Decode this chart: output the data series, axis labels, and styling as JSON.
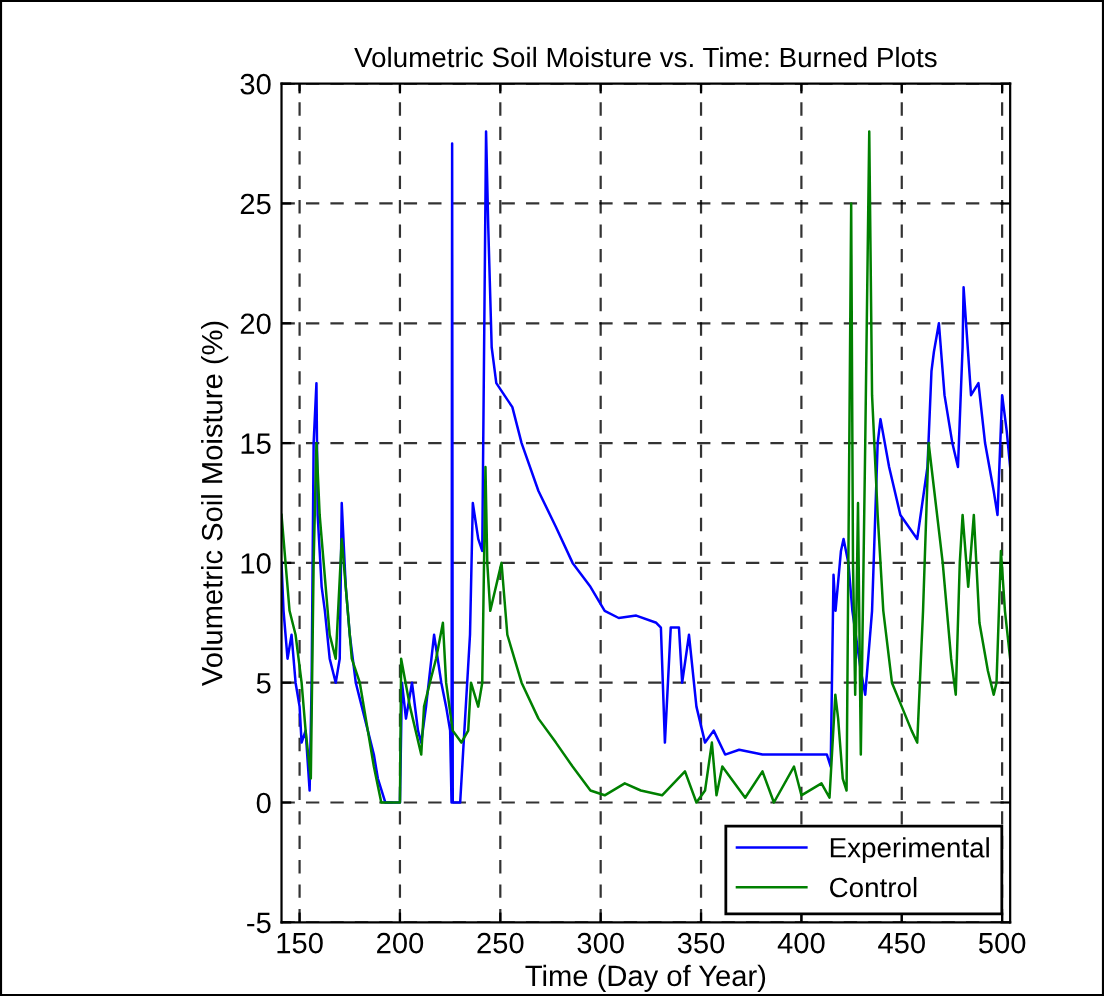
{
  "chart_data": {
    "type": "line",
    "title": "Volumetric Soil Moisture vs. Time: Burned Plots",
    "xlabel": "Time (Day of Year)",
    "ylabel": "Volumetric Soil Moisture (%)",
    "xlim": [
      141,
      504
    ],
    "xticks": [
      150,
      200,
      250,
      300,
      350,
      400,
      450,
      500
    ],
    "ylim": [
      -5,
      30
    ],
    "yticks": [
      -5,
      0,
      5,
      10,
      15,
      20,
      25,
      30
    ],
    "grid": true,
    "legend": "bottom right",
    "line_style": "solid",
    "series": [
      {
        "name": "Experimental",
        "color": "#0000ff",
        "x": [
          141,
          142,
          144,
          146,
          148,
          150,
          151,
          153,
          155,
          156,
          157,
          158.4,
          159,
          161,
          162.6,
          165,
          168,
          170,
          171,
          173,
          175,
          178,
          181,
          184,
          187,
          189,
          192.7,
          196,
          200,
          201,
          203,
          206,
          209,
          210.6,
          213,
          217,
          220.6,
          223,
          225,
          225.7,
          226,
          226.3,
          227,
          230,
          234.9,
          236.3,
          239,
          241,
          242.9,
          244,
          245.7,
          248,
          252,
          256,
          260.6,
          269,
          277.7,
          286,
          294.9,
          302,
          309,
          317.7,
          327.7,
          330,
          332,
          334.9,
          339,
          340.6,
          344,
          347.7,
          352,
          356.3,
          362,
          369,
          380.6,
          392,
          400,
          412.7,
          414.6,
          416,
          417,
          419.7,
          421,
          423.4,
          425.4,
          429.6,
          431.8,
          435.2,
          438,
          439.4,
          443.7,
          449.3,
          457.7,
          462.8,
          464.8,
          466,
          468.5,
          471.3,
          475.2,
          478,
          480.3,
          480.8,
          484.5,
          488.2,
          491.5,
          495.8,
          497.7,
          500,
          502.3,
          504
        ],
        "values": [
          10,
          8,
          6,
          7,
          5,
          4,
          2.5,
          3,
          0.5,
          5,
          15,
          17.5,
          12,
          9,
          8,
          6,
          5,
          6,
          12.5,
          9,
          7,
          5,
          4,
          3,
          2,
          1,
          0,
          0,
          0,
          5,
          3.5,
          5,
          3,
          2.5,
          4,
          7,
          5,
          4,
          3,
          0,
          27.5,
          0,
          0,
          0,
          7,
          12.5,
          11,
          10.5,
          28,
          24,
          19,
          17.5,
          17,
          16.5,
          15,
          13,
          11.5,
          10,
          9,
          8,
          7.7,
          7.8,
          7.5,
          7.3,
          2.5,
          7.3,
          7.3,
          5,
          7,
          4,
          2.5,
          3,
          2,
          2.2,
          2,
          2,
          2,
          2,
          1.5,
          9.5,
          8,
          10.5,
          11,
          10,
          8,
          5.5,
          4.5,
          8,
          15,
          16,
          14,
          12,
          11,
          14,
          18,
          18.8,
          20,
          17,
          15,
          14,
          19,
          21.5,
          17,
          17.5,
          15,
          13,
          12,
          17,
          15.5,
          14
        ]
      },
      {
        "name": "Control",
        "color": "#008000",
        "x": [
          141,
          145,
          148,
          151,
          153,
          155.6,
          157,
          158.4,
          160,
          162,
          165,
          168,
          171,
          173,
          176,
          180,
          184,
          187,
          190.7,
          195,
          200,
          200.6,
          205,
          210.6,
          212,
          214.9,
          218,
          221.4,
          223,
          226.3,
          230.6,
          234,
          235.4,
          239,
          241,
          242.6,
          243.5,
          245,
          250.6,
          253.5,
          260.6,
          269,
          277.7,
          286,
          294.9,
          302,
          312,
          320,
          330.6,
          342,
          347.7,
          352,
          355.4,
          357.7,
          360.6,
          372,
          380.6,
          386.3,
          396.3,
          400,
          410,
          414,
          416.9,
          418.3,
          420.6,
          422.5,
          424.8,
          425.7,
          426.8,
          428.2,
          429.6,
          431.8,
          433.8,
          435.2,
          438,
          440.8,
          445.1,
          450,
          454.9,
          457.7,
          460.6,
          463.4,
          466.2,
          470.4,
          474.6,
          476.9,
          478.9,
          480.3,
          483.1,
          485.9,
          488.7,
          492.9,
          495.8,
          497.2,
          499.4,
          501.4,
          504
        ],
        "values": [
          12,
          8,
          7,
          5,
          3,
          1,
          10,
          15,
          12,
          10,
          7,
          6,
          11,
          9,
          6,
          5,
          3,
          1.5,
          0,
          0,
          0,
          6,
          4,
          2,
          4,
          5,
          6,
          7.5,
          5,
          3,
          2.5,
          3,
          5,
          4,
          5,
          14,
          10,
          8,
          10,
          7,
          5,
          3.5,
          2.5,
          1.5,
          0.5,
          0.3,
          0.8,
          0.5,
          0.3,
          1.3,
          0,
          0.5,
          2.5,
          0.3,
          1.5,
          0.2,
          1.3,
          0,
          1.5,
          0.3,
          0.8,
          0.2,
          4.5,
          3.5,
          1,
          0.5,
          25,
          10,
          4.5,
          12.5,
          2,
          15,
          28,
          17,
          12,
          8,
          5,
          4,
          3,
          2.5,
          8,
          15,
          13,
          10,
          6,
          4.5,
          10,
          12,
          9,
          12,
          7.5,
          5.5,
          4.5,
          5,
          10.5,
          8,
          6
        ]
      }
    ]
  }
}
